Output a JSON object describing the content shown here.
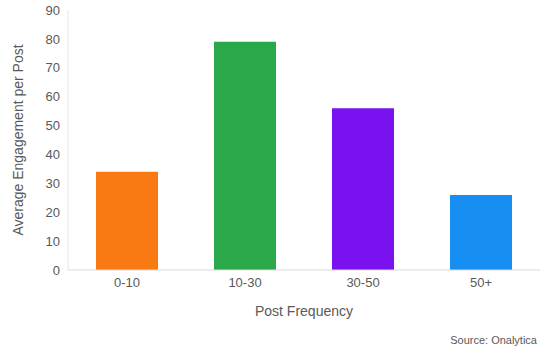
{
  "chart_data": {
    "type": "bar",
    "categories": [
      "0-10",
      "10-30",
      "30-50",
      "50+"
    ],
    "values": [
      34,
      79,
      56,
      26
    ],
    "colors": [
      "#f97a12",
      "#2aa84a",
      "#7a12f0",
      "#168ef2"
    ],
    "ylim": [
      0,
      90
    ],
    "yticks": [
      0,
      10,
      20,
      30,
      40,
      50,
      60,
      70,
      80,
      90
    ],
    "grid": false,
    "xlabel": "Post Frequency",
    "ylabel": "Average Engagement per Post",
    "annotation": "Source: Onalytica"
  }
}
